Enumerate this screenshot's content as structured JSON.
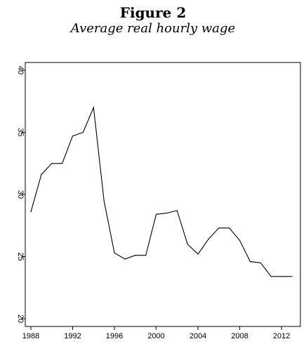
{
  "figure": {
    "title": "Figure 2",
    "subtitle": "Average real hourly wage"
  },
  "chart_data": {
    "type": "line",
    "title": "Average real hourly wage",
    "xlabel": "",
    "ylabel": "",
    "xlim": [
      1988,
      2013
    ],
    "ylim": [
      20,
      40
    ],
    "x_ticks": [
      1988,
      1992,
      1996,
      2000,
      2004,
      2008,
      2012
    ],
    "y_ticks": [
      20,
      25,
      30,
      35,
      40
    ],
    "grid": false,
    "series": [
      {
        "x": [
          1988,
          1989,
          1990,
          1991,
          1992,
          1993,
          1994,
          1995,
          1996,
          1997,
          1998,
          1999,
          2000,
          2001,
          2002,
          2003,
          2004,
          2005,
          2006,
          2007,
          2008,
          2009,
          2010,
          2011,
          2012,
          2013
        ],
        "values": [
          28.6,
          31.6,
          32.5,
          32.5,
          34.7,
          35.0,
          37.0,
          29.5,
          25.3,
          24.8,
          25.1,
          25.1,
          28.4,
          28.5,
          28.7,
          26.0,
          25.2,
          26.4,
          27.3,
          27.3,
          26.3,
          24.6,
          24.5,
          23.4,
          23.4,
          23.4
        ]
      }
    ]
  }
}
